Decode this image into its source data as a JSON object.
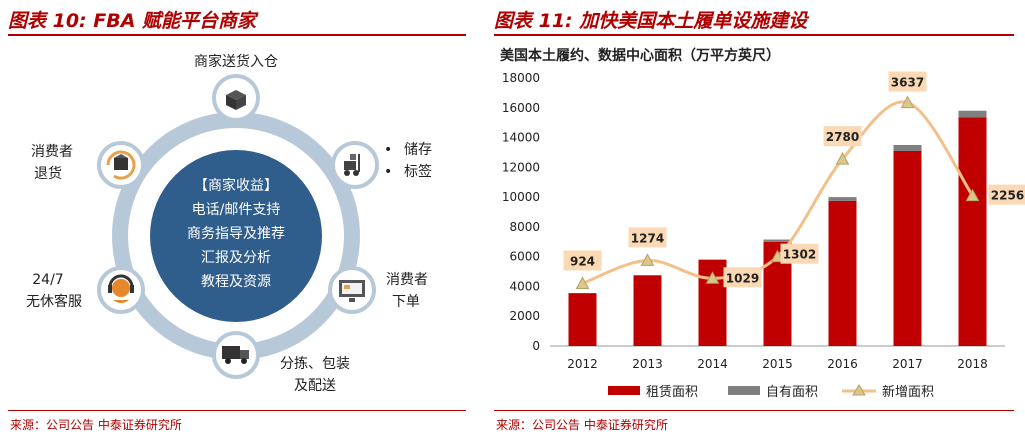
{
  "left_panel": {
    "title": "图表 10:   FBA 赋能平台商家",
    "center_lines": [
      "【商家收益】",
      "电话/邮件支持",
      "商务指导及推荐",
      "汇报及分析",
      "教程及资源"
    ],
    "nodes": {
      "stock_in": "商家送货入仓",
      "storage_1": "储存",
      "storage_2": "标签",
      "order_1": "消费者",
      "order_2": "下单",
      "pack_1": "分拣、包装",
      "pack_2": "及配送",
      "service_1": "24/7",
      "service_2": "无休客服",
      "return_1": "消费者",
      "return_2": "退货"
    },
    "bullet": "•",
    "source": "来源：公司公告 中泰证券研究所"
  },
  "right_panel": {
    "title": "图表 11:  加快美国本土履单设施建设",
    "source": "来源：公司公告 中泰证券研究所"
  },
  "colors": {
    "red": "#c00000",
    "gray": "#7f7f7f",
    "line": "#f4c08a",
    "marker": "#d9c88a",
    "ring": "#b7c9d9",
    "center": "#2f5d8c"
  },
  "chart_data": {
    "type": "bar",
    "title": "美国本土履约、数据中心面积（万平方英尺）",
    "categories": [
      "2012",
      "2013",
      "2014",
      "2015",
      "2016",
      "2017",
      "2018"
    ],
    "series": [
      {
        "name": "租赁面积",
        "kind": "bar",
        "values": [
          3550,
          4750,
          5800,
          7000,
          9750,
          13100,
          15350
        ]
      },
      {
        "name": "自有面积",
        "kind": "bar-stack",
        "values": [
          0,
          0,
          0,
          150,
          250,
          400,
          450
        ]
      },
      {
        "name": "新增面积",
        "kind": "line",
        "values": [
          924,
          1274,
          1029,
          1302,
          2780,
          3637,
          2256
        ]
      }
    ],
    "y_ticks": [
      "0",
      "2000",
      "4000",
      "6000",
      "8000",
      "10000",
      "12000",
      "14000",
      "16000",
      "18000"
    ],
    "ylim": [
      0,
      18000
    ],
    "line_plot_y": [
      4200,
      5750,
      4550,
      6000,
      12550,
      16350,
      10100
    ],
    "legend_position": "bottom"
  }
}
